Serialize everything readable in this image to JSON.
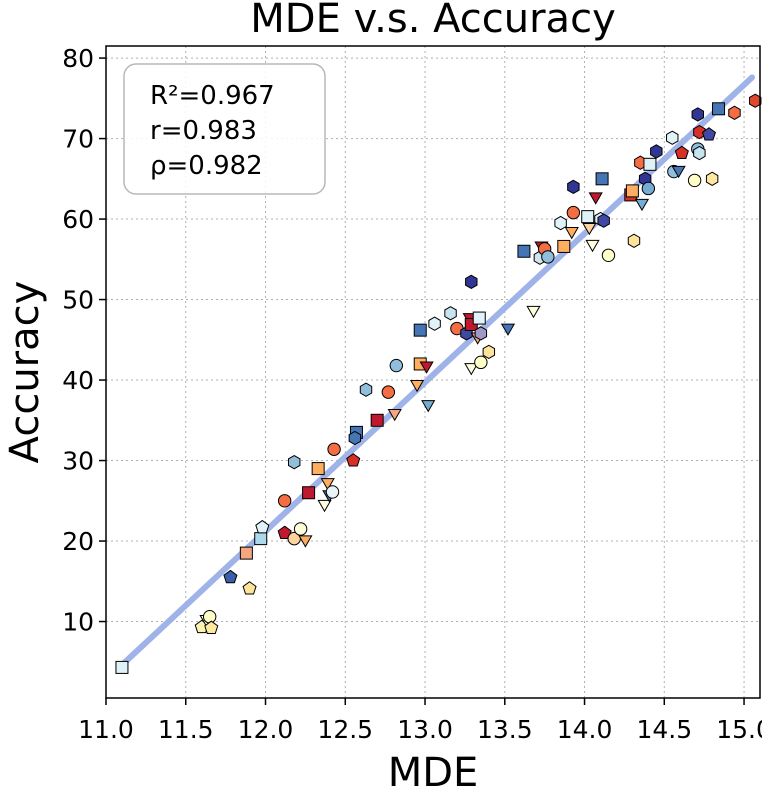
{
  "chart_data": {
    "type": "scatter",
    "title": "MDE  v.s.  Accuracy",
    "xlabel": "MDE",
    "ylabel": "Accuracy",
    "xlim": [
      11.0,
      15.1
    ],
    "ylim": [
      0.5,
      81.5
    ],
    "xticks": [
      "11.0",
      "11.5",
      "12.0",
      "12.5",
      "13.0",
      "13.5",
      "14.0",
      "14.5",
      "15.0"
    ],
    "yticks": [
      "10",
      "20",
      "30",
      "40",
      "50",
      "60",
      "70",
      "80"
    ],
    "grid": true,
    "fit_line": {
      "x": [
        11.1,
        15.05
      ],
      "y": [
        4.6,
        77.6
      ],
      "color": "#9fb3e8"
    },
    "stats": [
      "R²=0.967",
      "r=0.983",
      "ρ=0.982"
    ],
    "stats_placement": "top-left",
    "points": [
      {
        "x": 11.1,
        "y": 4.3,
        "shape": "square",
        "color": "#dff2f7"
      },
      {
        "x": 11.6,
        "y": 9.3,
        "shape": "pentagon",
        "color": "#fff3b0"
      },
      {
        "x": 11.63,
        "y": 10.3,
        "shape": "triangle-down",
        "color": "#ffffdd"
      },
      {
        "x": 11.65,
        "y": 10.6,
        "shape": "circle",
        "color": "#ffffc8"
      },
      {
        "x": 11.66,
        "y": 9.2,
        "shape": "pentagon",
        "color": "#fee8a0"
      },
      {
        "x": 11.78,
        "y": 15.5,
        "shape": "pentagon",
        "color": "#3b5eaa"
      },
      {
        "x": 11.9,
        "y": 14.1,
        "shape": "pentagon",
        "color": "#fee39a"
      },
      {
        "x": 11.88,
        "y": 18.5,
        "shape": "square",
        "color": "#f4a582"
      },
      {
        "x": 11.97,
        "y": 20.3,
        "shape": "square",
        "color": "#abd9e9"
      },
      {
        "x": 11.98,
        "y": 21.7,
        "shape": "pentagon",
        "color": "#e0f3f8"
      },
      {
        "x": 12.12,
        "y": 21.0,
        "shape": "pentagon",
        "color": "#c0182f"
      },
      {
        "x": 12.12,
        "y": 25.0,
        "shape": "circle",
        "color": "#f46d43"
      },
      {
        "x": 12.18,
        "y": 20.3,
        "shape": "circle",
        "color": "#fdd49e"
      },
      {
        "x": 12.18,
        "y": 29.8,
        "shape": "hexagon",
        "color": "#91bfdb"
      },
      {
        "x": 12.22,
        "y": 21.5,
        "shape": "circle",
        "color": "#ffffd9"
      },
      {
        "x": 12.25,
        "y": 20.2,
        "shape": "triangle-down",
        "color": "#fdae61"
      },
      {
        "x": 12.27,
        "y": 26.0,
        "shape": "square",
        "color": "#c0182f"
      },
      {
        "x": 12.33,
        "y": 29.0,
        "shape": "square",
        "color": "#fdae61"
      },
      {
        "x": 12.37,
        "y": 24.6,
        "shape": "triangle-down",
        "color": "#ffffe0"
      },
      {
        "x": 12.39,
        "y": 27.3,
        "shape": "triangle-down",
        "color": "#fdae61"
      },
      {
        "x": 12.4,
        "y": 25.8,
        "shape": "triangle-down",
        "color": "#4575b4"
      },
      {
        "x": 12.42,
        "y": 26.1,
        "shape": "circle",
        "color": "#e8f4f8"
      },
      {
        "x": 12.43,
        "y": 31.4,
        "shape": "circle",
        "color": "#f46d43"
      },
      {
        "x": 12.55,
        "y": 30.0,
        "shape": "pentagon",
        "color": "#d73027"
      },
      {
        "x": 12.57,
        "y": 33.5,
        "shape": "square",
        "color": "#4575b4"
      },
      {
        "x": 12.56,
        "y": 32.8,
        "shape": "hexagon",
        "color": "#4575b4"
      },
      {
        "x": 12.63,
        "y": 38.8,
        "shape": "hexagon",
        "color": "#91bfdb"
      },
      {
        "x": 12.7,
        "y": 35.0,
        "shape": "square",
        "color": "#c0182f"
      },
      {
        "x": 12.77,
        "y": 38.5,
        "shape": "circle",
        "color": "#f46d43"
      },
      {
        "x": 12.81,
        "y": 35.9,
        "shape": "triangle-down",
        "color": "#f4a582"
      },
      {
        "x": 12.82,
        "y": 41.8,
        "shape": "circle",
        "color": "#91bfdb"
      },
      {
        "x": 12.95,
        "y": 39.5,
        "shape": "triangle-down",
        "color": "#fdae61"
      },
      {
        "x": 12.97,
        "y": 42.0,
        "shape": "square",
        "color": "#fdae61"
      },
      {
        "x": 12.97,
        "y": 46.2,
        "shape": "square",
        "color": "#4575b4"
      },
      {
        "x": 13.01,
        "y": 41.8,
        "shape": "triangle-down",
        "color": "#c0182f"
      },
      {
        "x": 13.02,
        "y": 37.0,
        "shape": "triangle-down",
        "color": "#74add1"
      },
      {
        "x": 13.06,
        "y": 47.0,
        "shape": "hexagon",
        "color": "#e0f3f8"
      },
      {
        "x": 13.16,
        "y": 48.3,
        "shape": "hexagon",
        "color": "#c6e4ef"
      },
      {
        "x": 13.2,
        "y": 46.4,
        "shape": "circle",
        "color": "#f46d43"
      },
      {
        "x": 13.26,
        "y": 45.8,
        "shape": "hexagon",
        "color": "#3f49a4"
      },
      {
        "x": 13.28,
        "y": 47.8,
        "shape": "triangle-down",
        "color": "#c0182f"
      },
      {
        "x": 13.29,
        "y": 46.9,
        "shape": "square",
        "color": "#c0182f"
      },
      {
        "x": 13.29,
        "y": 52.2,
        "shape": "hexagon",
        "color": "#313695"
      },
      {
        "x": 13.29,
        "y": 41.6,
        "shape": "triangle-down",
        "color": "#ffffe0"
      },
      {
        "x": 13.33,
        "y": 45.4,
        "shape": "triangle-down",
        "color": "#f4a582"
      },
      {
        "x": 13.34,
        "y": 47.7,
        "shape": "square",
        "color": "#e0f3f8"
      },
      {
        "x": 13.35,
        "y": 42.2,
        "shape": "circle",
        "color": "#ffffc8"
      },
      {
        "x": 13.35,
        "y": 45.8,
        "shape": "hexagon",
        "color": "#9e9ac8"
      },
      {
        "x": 13.4,
        "y": 43.5,
        "shape": "hexagon",
        "color": "#fee39a"
      },
      {
        "x": 13.52,
        "y": 46.5,
        "shape": "triangle-down",
        "color": "#4575b4"
      },
      {
        "x": 13.62,
        "y": 56.0,
        "shape": "square",
        "color": "#4575b4"
      },
      {
        "x": 13.68,
        "y": 48.7,
        "shape": "triangle-down",
        "color": "#ffffe0"
      },
      {
        "x": 13.72,
        "y": 55.2,
        "shape": "hexagon",
        "color": "#d1e5f0"
      },
      {
        "x": 13.73,
        "y": 56.7,
        "shape": "triangle-down",
        "color": "#c0182f"
      },
      {
        "x": 13.75,
        "y": 56.3,
        "shape": "circle",
        "color": "#f46d43"
      },
      {
        "x": 13.77,
        "y": 55.3,
        "shape": "circle",
        "color": "#91bfdb"
      },
      {
        "x": 13.85,
        "y": 59.5,
        "shape": "hexagon",
        "color": "#e0f3f8"
      },
      {
        "x": 13.87,
        "y": 56.6,
        "shape": "square",
        "color": "#fdae61"
      },
      {
        "x": 13.92,
        "y": 58.5,
        "shape": "triangle-down",
        "color": "#fdae61"
      },
      {
        "x": 13.93,
        "y": 60.8,
        "shape": "circle",
        "color": "#f46d43"
      },
      {
        "x": 13.93,
        "y": 64.0,
        "shape": "hexagon",
        "color": "#313695"
      },
      {
        "x": 14.02,
        "y": 60.3,
        "shape": "square",
        "color": "#dff2f7"
      },
      {
        "x": 14.03,
        "y": 59.0,
        "shape": "triangle-down",
        "color": "#fdd49e"
      },
      {
        "x": 14.05,
        "y": 56.9,
        "shape": "triangle-down",
        "color": "#ffffe0"
      },
      {
        "x": 14.07,
        "y": 62.8,
        "shape": "triangle-down",
        "color": "#c0182f"
      },
      {
        "x": 14.1,
        "y": 60.0,
        "shape": "hexagon",
        "color": "#e0f3f8"
      },
      {
        "x": 14.11,
        "y": 65.0,
        "shape": "square",
        "color": "#4575b4"
      },
      {
        "x": 14.12,
        "y": 59.8,
        "shape": "hexagon",
        "color": "#3f49a4"
      },
      {
        "x": 14.15,
        "y": 55.5,
        "shape": "circle",
        "color": "#ffffc8"
      },
      {
        "x": 14.29,
        "y": 63.0,
        "shape": "square",
        "color": "#d73027"
      },
      {
        "x": 14.3,
        "y": 63.5,
        "shape": "square",
        "color": "#fdae61"
      },
      {
        "x": 14.31,
        "y": 57.3,
        "shape": "hexagon",
        "color": "#fee39a"
      },
      {
        "x": 14.35,
        "y": 67.0,
        "shape": "hexagon",
        "color": "#f46d43"
      },
      {
        "x": 14.36,
        "y": 62.0,
        "shape": "triangle-down",
        "color": "#74add1"
      },
      {
        "x": 14.38,
        "y": 65.0,
        "shape": "hexagon",
        "color": "#313695"
      },
      {
        "x": 14.4,
        "y": 63.8,
        "shape": "circle",
        "color": "#74add1"
      },
      {
        "x": 14.41,
        "y": 66.8,
        "shape": "square",
        "color": "#dff2f7"
      },
      {
        "x": 14.45,
        "y": 68.4,
        "shape": "hexagon",
        "color": "#313695"
      },
      {
        "x": 14.55,
        "y": 70.1,
        "shape": "hexagon",
        "color": "#e0f3f8"
      },
      {
        "x": 14.56,
        "y": 65.9,
        "shape": "circle",
        "color": "#91bfdb"
      },
      {
        "x": 14.59,
        "y": 66.1,
        "shape": "triangle-down",
        "color": "#4575b4"
      },
      {
        "x": 14.61,
        "y": 68.2,
        "shape": "pentagon",
        "color": "#d73027"
      },
      {
        "x": 14.69,
        "y": 64.8,
        "shape": "circle",
        "color": "#ffffc8"
      },
      {
        "x": 14.71,
        "y": 68.7,
        "shape": "circle",
        "color": "#91bfdb"
      },
      {
        "x": 14.72,
        "y": 68.2,
        "shape": "hexagon",
        "color": "#c6e4ef"
      },
      {
        "x": 14.71,
        "y": 73.0,
        "shape": "hexagon",
        "color": "#313695"
      },
      {
        "x": 14.72,
        "y": 70.8,
        "shape": "hexagon",
        "color": "#d73027"
      },
      {
        "x": 14.78,
        "y": 70.5,
        "shape": "pentagon",
        "color": "#3f49a4"
      },
      {
        "x": 14.8,
        "y": 65.0,
        "shape": "hexagon",
        "color": "#fee8a0"
      },
      {
        "x": 14.84,
        "y": 73.7,
        "shape": "square",
        "color": "#4575b4"
      },
      {
        "x": 14.94,
        "y": 73.2,
        "shape": "hexagon",
        "color": "#f46d43"
      },
      {
        "x": 15.07,
        "y": 74.7,
        "shape": "hexagon",
        "color": "#e0482e"
      }
    ]
  }
}
